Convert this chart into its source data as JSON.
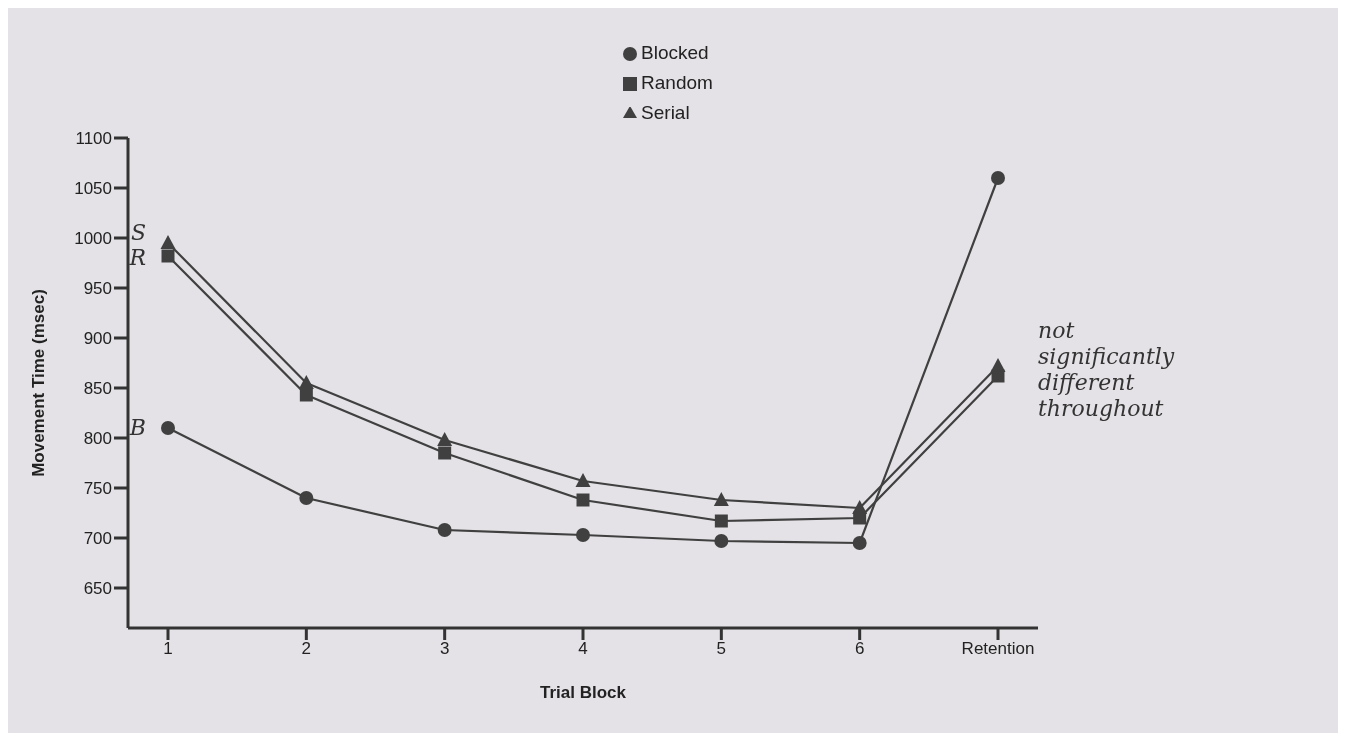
{
  "chart_data": {
    "type": "line",
    "xlabel": "Trial Block",
    "ylabel": "Movement Time (msec)",
    "categories": [
      "1",
      "2",
      "3",
      "4",
      "5",
      "6",
      "Retention"
    ],
    "series": [
      {
        "name": "Blocked",
        "color": "#404040",
        "marker": "circle",
        "values": [
          810,
          740,
          708,
          703,
          697,
          695,
          1060
        ]
      },
      {
        "name": "Random",
        "color": "#404040",
        "marker": "square",
        "values": [
          982,
          843,
          785,
          738,
          717,
          720,
          862
        ]
      },
      {
        "name": "Serial",
        "color": "#404040",
        "marker": "triangle",
        "values": [
          995,
          855,
          798,
          757,
          738,
          730,
          872
        ]
      }
    ],
    "ylim": [
      610,
      1100
    ],
    "yticks": [
      650,
      700,
      750,
      800,
      850,
      900,
      950,
      1000,
      1050,
      1100
    ],
    "grid": false,
    "legend": "top",
    "line_style": "solid",
    "annotations": [
      {
        "text": "S",
        "x": "1",
        "y": 1005
      },
      {
        "text": "R",
        "x": "1",
        "y": 980
      },
      {
        "text": "B",
        "x": "1",
        "y": 810
      },
      {
        "text": "not significantly different throughout",
        "x": "Retention",
        "y": 880
      }
    ]
  }
}
